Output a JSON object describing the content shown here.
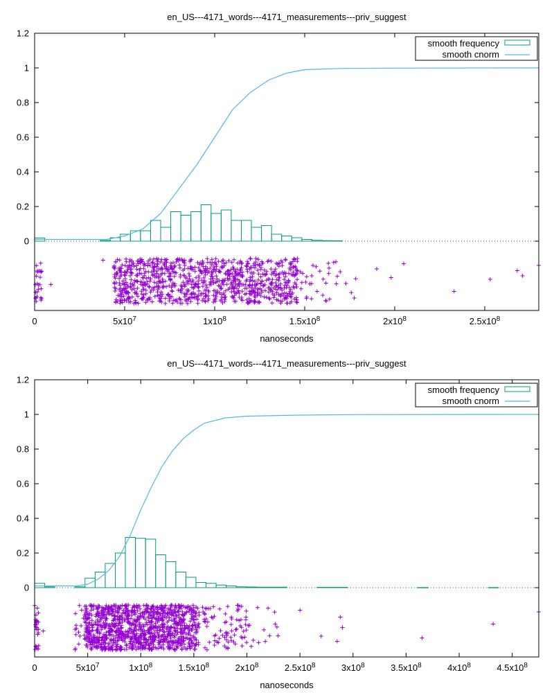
{
  "chart_data": [
    {
      "type": "bar",
      "title": "en_US---4171_words---4171_measurements---priv_suggest",
      "xlabel": "nanoseconds",
      "ylabel": "",
      "xlim": [
        0,
        280000000
      ],
      "ylim": [
        -0.4,
        1.2
      ],
      "yticks": [
        "0",
        "0.2",
        "0.4",
        "0.6",
        "0.8",
        "1",
        "1.2"
      ],
      "xticks": [
        {
          "value": 0,
          "mant": "0",
          "exp": ""
        },
        {
          "value": 50000000,
          "mant": "5x10",
          "exp": "7"
        },
        {
          "value": 100000000,
          "mant": "1x10",
          "exp": "8"
        },
        {
          "value": 150000000,
          "mant": "1.5x10",
          "exp": "8"
        },
        {
          "value": 200000000,
          "mant": "2x10",
          "exp": "8"
        },
        {
          "value": 250000000,
          "mant": "2.5x10",
          "exp": "8"
        }
      ],
      "legend": {
        "position": "top-right",
        "entries": [
          "smooth frequency",
          "smooth cnorm"
        ]
      },
      "colors": {
        "frequency": "#009e73",
        "cnorm": "#56b4e9",
        "points": "#9400d3"
      },
      "histogram": {
        "bin_width": 5600000,
        "bins": [
          {
            "x": 0,
            "v": 0.018
          },
          {
            "x": 36400000,
            "v": 0.004
          },
          {
            "x": 42000000,
            "v": 0.02
          },
          {
            "x": 47600000,
            "v": 0.04
          },
          {
            "x": 53200000,
            "v": 0.06
          },
          {
            "x": 58800000,
            "v": 0.06
          },
          {
            "x": 64400000,
            "v": 0.12
          },
          {
            "x": 70000000,
            "v": 0.08
          },
          {
            "x": 75600000,
            "v": 0.17
          },
          {
            "x": 81200000,
            "v": 0.15
          },
          {
            "x": 86800000,
            "v": 0.17
          },
          {
            "x": 92400000,
            "v": 0.21
          },
          {
            "x": 98000000,
            "v": 0.16
          },
          {
            "x": 103600000,
            "v": 0.18
          },
          {
            "x": 109200000,
            "v": 0.12
          },
          {
            "x": 114800000,
            "v": 0.12
          },
          {
            "x": 120400000,
            "v": 0.08
          },
          {
            "x": 126000000,
            "v": 0.09
          },
          {
            "x": 131600000,
            "v": 0.04
          },
          {
            "x": 137200000,
            "v": 0.03
          },
          {
            "x": 142800000,
            "v": 0.02
          },
          {
            "x": 148400000,
            "v": 0.01
          },
          {
            "x": 154000000,
            "v": 0.005
          },
          {
            "x": 159600000,
            "v": 0.003
          },
          {
            "x": 165200000,
            "v": 0.002
          }
        ]
      },
      "cnorm": [
        [
          0,
          0.01
        ],
        [
          40000000,
          0.01
        ],
        [
          50000000,
          0.03
        ],
        [
          60000000,
          0.07
        ],
        [
          70000000,
          0.16
        ],
        [
          80000000,
          0.3
        ],
        [
          90000000,
          0.44
        ],
        [
          100000000,
          0.6
        ],
        [
          110000000,
          0.76
        ],
        [
          120000000,
          0.86
        ],
        [
          130000000,
          0.93
        ],
        [
          140000000,
          0.97
        ],
        [
          150000000,
          0.99
        ],
        [
          170000000,
          0.997
        ],
        [
          200000000,
          0.999
        ],
        [
          280000000,
          1.0
        ]
      ],
      "scatter": {
        "y_band": [
          -0.36,
          -0.1
        ],
        "dense_ranges": [
          [
            44000000,
            146000000,
            950
          ]
        ],
        "sparse_ranges": [
          [
            0,
            4000000,
            25
          ],
          [
            146000000,
            170000000,
            30
          ],
          [
            170000000,
            180000000,
            4
          ]
        ],
        "outliers": [
          [
            9000000,
            -0.25
          ],
          [
            38000000,
            -0.11
          ],
          [
            190000000,
            -0.16
          ],
          [
            198000000,
            -0.21
          ],
          [
            205000000,
            -0.13
          ],
          [
            233000000,
            -0.29
          ],
          [
            253000000,
            -0.22
          ],
          [
            268000000,
            -0.17
          ],
          [
            271000000,
            -0.2
          ],
          [
            280000000,
            -0.14
          ]
        ]
      }
    },
    {
      "type": "bar",
      "title": "en_US---4171_words---4171_measurements---priv_suggest",
      "xlabel": "nanoseconds",
      "ylabel": "",
      "xlim": [
        0,
        475000000
      ],
      "ylim": [
        -0.4,
        1.2
      ],
      "yticks": [
        "0",
        "0.2",
        "0.4",
        "0.6",
        "0.8",
        "1",
        "1.2"
      ],
      "xticks": [
        {
          "value": 0,
          "mant": "0",
          "exp": ""
        },
        {
          "value": 50000000,
          "mant": "5x10",
          "exp": "7"
        },
        {
          "value": 100000000,
          "mant": "1x10",
          "exp": "8"
        },
        {
          "value": 150000000,
          "mant": "1.5x10",
          "exp": "8"
        },
        {
          "value": 200000000,
          "mant": "2x10",
          "exp": "8"
        },
        {
          "value": 250000000,
          "mant": "2.5x10",
          "exp": "8"
        },
        {
          "value": 300000000,
          "mant": "3x10",
          "exp": "8"
        },
        {
          "value": 350000000,
          "mant": "3.5x10",
          "exp": "8"
        },
        {
          "value": 400000000,
          "mant": "4x10",
          "exp": "8"
        },
        {
          "value": 450000000,
          "mant": "4.5x10",
          "exp": "8"
        }
      ],
      "legend": {
        "position": "top-right",
        "entries": [
          "smooth frequency",
          "smooth cnorm"
        ]
      },
      "colors": {
        "frequency": "#009e73",
        "cnorm": "#56b4e9",
        "points": "#9400d3"
      },
      "histogram": {
        "bin_width": 9500000,
        "bins": [
          {
            "x": 0,
            "v": 0.025
          },
          {
            "x": 9500000,
            "v": 0.005
          },
          {
            "x": 38000000,
            "v": 0.005
          },
          {
            "x": 47500000,
            "v": 0.055
          },
          {
            "x": 57000000,
            "v": 0.09
          },
          {
            "x": 66500000,
            "v": 0.14
          },
          {
            "x": 76000000,
            "v": 0.2
          },
          {
            "x": 85500000,
            "v": 0.29
          },
          {
            "x": 95000000,
            "v": 0.285
          },
          {
            "x": 104500000,
            "v": 0.28
          },
          {
            "x": 114000000,
            "v": 0.19
          },
          {
            "x": 123500000,
            "v": 0.15
          },
          {
            "x": 133000000,
            "v": 0.09
          },
          {
            "x": 142500000,
            "v": 0.06
          },
          {
            "x": 152000000,
            "v": 0.03
          },
          {
            "x": 161500000,
            "v": 0.025
          },
          {
            "x": 171000000,
            "v": 0.015
          },
          {
            "x": 180500000,
            "v": 0.01
          },
          {
            "x": 190000000,
            "v": 0.005
          },
          {
            "x": 199500000,
            "v": 0.004
          },
          {
            "x": 209000000,
            "v": 0.003
          },
          {
            "x": 218500000,
            "v": 0.003
          },
          {
            "x": 228000000,
            "v": 0.003
          },
          {
            "x": 266000000,
            "v": 0.002
          },
          {
            "x": 275500000,
            "v": 0.002
          },
          {
            "x": 285000000,
            "v": 0.002
          },
          {
            "x": 361000000,
            "v": 0.001
          },
          {
            "x": 427500000,
            "v": 0.001
          }
        ]
      },
      "cnorm": [
        [
          0,
          0.01
        ],
        [
          40000000,
          0.01
        ],
        [
          50000000,
          0.02
        ],
        [
          60000000,
          0.05
        ],
        [
          70000000,
          0.1
        ],
        [
          80000000,
          0.18
        ],
        [
          90000000,
          0.3
        ],
        [
          100000000,
          0.45
        ],
        [
          110000000,
          0.58
        ],
        [
          120000000,
          0.7
        ],
        [
          130000000,
          0.79
        ],
        [
          140000000,
          0.86
        ],
        [
          150000000,
          0.91
        ],
        [
          160000000,
          0.95
        ],
        [
          180000000,
          0.98
        ],
        [
          200000000,
          0.99
        ],
        [
          250000000,
          0.996
        ],
        [
          300000000,
          0.999
        ],
        [
          475000000,
          1.0
        ]
      ],
      "scatter": {
        "y_band": [
          -0.36,
          -0.1
        ],
        "dense_ranges": [
          [
            47000000,
            155000000,
            1100
          ]
        ],
        "sparse_ranges": [
          [
            0,
            4000000,
            25
          ],
          [
            38000000,
            47000000,
            15
          ],
          [
            155000000,
            200000000,
            80
          ],
          [
            200000000,
            230000000,
            14
          ]
        ],
        "outliers": [
          [
            8000000,
            -0.25
          ],
          [
            250000000,
            -0.13
          ],
          [
            270000000,
            -0.28
          ],
          [
            285000000,
            -0.31
          ],
          [
            288000000,
            -0.17
          ],
          [
            290000000,
            -0.23
          ],
          [
            365000000,
            -0.29
          ],
          [
            432000000,
            -0.21
          ],
          [
            475000000,
            -0.14
          ]
        ]
      }
    }
  ]
}
